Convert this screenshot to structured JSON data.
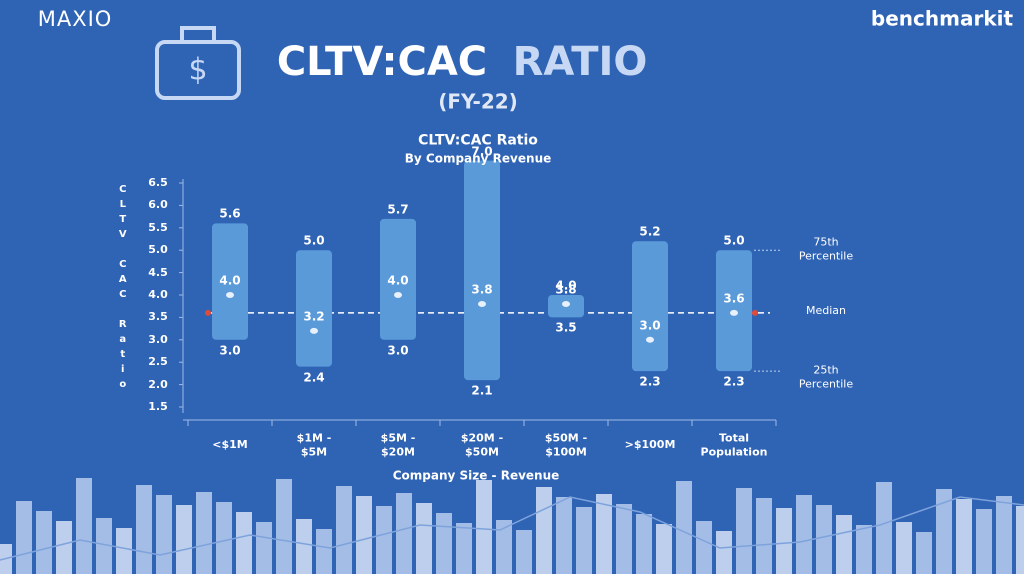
{
  "brand": "MAXIO",
  "partner": "benchmarkit",
  "icon": "$",
  "headline": {
    "main": "CLTV:CAC",
    "accent": "RATIO",
    "sub": "(FY-22)"
  },
  "chart_data": {
    "type": "range",
    "title": "CLTV:CAC Ratio",
    "subtitle": "By Company Revenue",
    "y_label": "CLTV CAC Ratio",
    "x_label": "Company Size - Revenue",
    "categories": [
      "<$1M",
      "$1M -\n$5M",
      "$5M -\n$20M",
      "$20M -\n$50M",
      "$50M -\n$100M",
      ">$100M",
      "Total\nPopulation"
    ],
    "color": "#5a9ad9",
    "series": [
      {
        "name": "25th Percentile",
        "values": [
          3.0,
          2.4,
          3.0,
          2.1,
          3.5,
          2.3,
          2.3
        ],
        "value_labels": [
          "3.0",
          "2.4",
          "3.0",
          "2.1",
          "3.5",
          "2.3",
          "2.3"
        ]
      },
      {
        "name": "Median",
        "values": [
          4.0,
          3.2,
          4.0,
          3.8,
          3.8,
          3.0,
          3.6
        ],
        "value_labels": [
          "4.0",
          "3.2",
          "4.0",
          "3.8",
          "3.8",
          "3.0",
          "3.6"
        ]
      },
      {
        "name": "75th Percentile",
        "values": [
          5.6,
          5.0,
          5.7,
          7.0,
          4.0,
          5.2,
          5.0
        ],
        "value_labels": [
          "5.6",
          "5.0",
          "5.7",
          "7.0",
          "4.0",
          "5.2",
          "5.0"
        ]
      }
    ],
    "ylim": [
      1.5,
      6.5
    ],
    "yticks": [
      1.5,
      {
        "value": 2,
        "label": "2.0"
      },
      2.5,
      {
        "value": 3,
        "label": "3.0"
      },
      3.5,
      {
        "value": 4,
        "label": "4.0"
      },
      4.5,
      {
        "value": 5,
        "label": "5.0"
      },
      5.5,
      {
        "value": 6,
        "label": "6.0"
      },
      6.5
    ]
  }
}
